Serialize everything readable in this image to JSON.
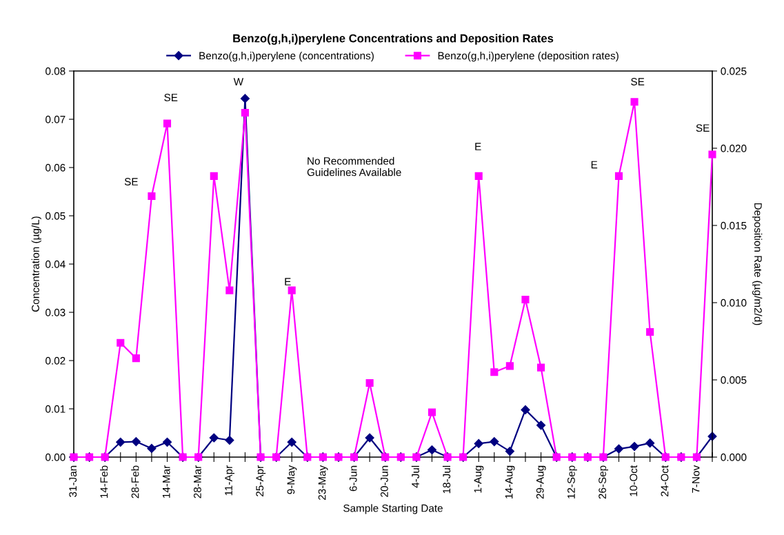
{
  "chart_data": {
    "type": "line",
    "title": "Benzo(g,h,i)perylene Concentrations and Deposition Rates",
    "xlabel": "Sample Starting Date",
    "ylabel": "Concentration (µg/L)",
    "y2label": "Deposition Rate (µg/m2/d)",
    "categories": [
      "31-Jan",
      null,
      "14-Feb",
      null,
      "28-Feb",
      null,
      "14-Mar",
      null,
      "28-Mar",
      null,
      "11-Apr",
      null,
      "25-Apr",
      null,
      "9-May",
      null,
      "23-May",
      null,
      "6-Jun",
      null,
      "20-Jun",
      null,
      "4-Jul",
      null,
      "18-Jul",
      null,
      "1-Aug",
      null,
      "14-Aug",
      null,
      "29-Aug",
      null,
      "12-Sep",
      null,
      "26-Sep",
      null,
      "10-Oct",
      null,
      "24-Oct",
      null,
      "7-Nov",
      null
    ],
    "series": [
      {
        "name": "Benzo(g,h,i)perylene (concentrations)",
        "color": "#000080",
        "marker": "diamond",
        "values": [
          0,
          0,
          0,
          0.0031,
          0.0032,
          0.0018,
          0.0031,
          0,
          0,
          0.004,
          0.0035,
          0.0743,
          0,
          0,
          0.0031,
          0,
          0,
          0,
          0,
          0.004,
          0,
          0,
          0,
          0.0015,
          0,
          0,
          0.0028,
          0.0032,
          0.0012,
          0.0098,
          0.0066,
          0,
          0,
          0,
          0,
          0.0017,
          0.0022,
          0.0029,
          0,
          0,
          0,
          0.0043
        ]
      },
      {
        "name": "Benzo(g,h,i)perylene (deposition rates)",
        "color": "#ff00ff",
        "marker": "square",
        "axis": "y2",
        "values": [
          0,
          0,
          0,
          0.0074,
          0.0064,
          0.0169,
          0.0216,
          0,
          0,
          0.0182,
          0.0108,
          0.0223,
          0,
          0,
          0.0108,
          0,
          0,
          0,
          0,
          0.0048,
          0,
          0,
          0,
          0.0029,
          0,
          0,
          0.0182,
          0.0055,
          0.0059,
          0.0102,
          0.0058,
          0,
          0,
          0,
          0,
          0.0182,
          0.023,
          0.0081,
          0,
          0,
          0,
          0.0196
        ]
      }
    ],
    "ylim": [
      0,
      0.08
    ],
    "yticks": [
      {
        "value": 0,
        "label": "0.00"
      },
      0.01,
      0.02,
      0.03,
      0.04,
      0.05,
      0.06,
      0.07,
      0.08
    ],
    "y2lim": [
      0,
      0.025
    ],
    "y2ticks": [
      {
        "value": 0,
        "label": "0.000"
      },
      0.005,
      {
        "value": 0.01,
        "label": "0.010"
      },
      0.015,
      {
        "value": 0.02,
        "label": "0.020"
      },
      0.025
    ],
    "annotations": [
      "SE",
      "SE",
      "W",
      "No Recommended\nGuidelines Available",
      "E",
      "E",
      "E",
      "SE",
      "SE"
    ],
    "legend": "top",
    "grid": false,
    "line_style": "solid"
  }
}
